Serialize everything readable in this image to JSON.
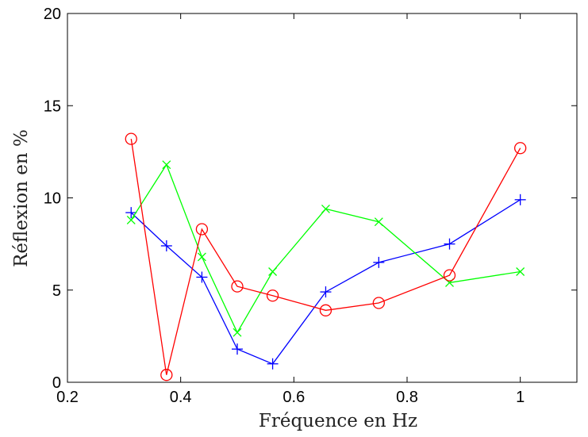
{
  "chart_data": {
    "type": "line",
    "xlabel": "Fréquence en Hz",
    "ylabel": "Réflexion en %",
    "xlim": [
      0.2,
      1.1
    ],
    "ylim": [
      0,
      20
    ],
    "xticks": [
      0.2,
      0.4,
      0.6,
      0.8,
      1
    ],
    "xtick_labels": [
      "0.2",
      "0.4",
      "0.6",
      "0.8",
      "1"
    ],
    "yticks": [
      0,
      5,
      10,
      15,
      20
    ],
    "ytick_labels": [
      "0",
      "5",
      "10",
      "15",
      "20"
    ],
    "grid": false,
    "series": [
      {
        "color": "#0000ff",
        "marker": "plus",
        "x": [
          0.3125,
          0.375,
          0.4375,
          0.5,
          0.5625,
          0.65625,
          0.75,
          0.875,
          1.0
        ],
        "y": [
          9.2,
          7.4,
          5.7,
          1.8,
          1.0,
          4.9,
          6.5,
          7.5,
          9.9
        ]
      },
      {
        "color": "#00ff00",
        "marker": "x",
        "x": [
          0.3125,
          0.375,
          0.4375,
          0.5,
          0.5625,
          0.65625,
          0.75,
          0.875,
          1.0
        ],
        "y": [
          8.8,
          11.8,
          6.8,
          2.7,
          6.0,
          9.4,
          8.7,
          5.4,
          6.0
        ]
      },
      {
        "color": "#ff0000",
        "marker": "circle",
        "x": [
          0.3125,
          0.375,
          0.4375,
          0.5,
          0.5625,
          0.65625,
          0.75,
          0.875,
          1.0
        ],
        "y": [
          13.2,
          0.4,
          8.3,
          5.2,
          4.7,
          3.9,
          4.3,
          5.8,
          12.7
        ]
      }
    ]
  }
}
